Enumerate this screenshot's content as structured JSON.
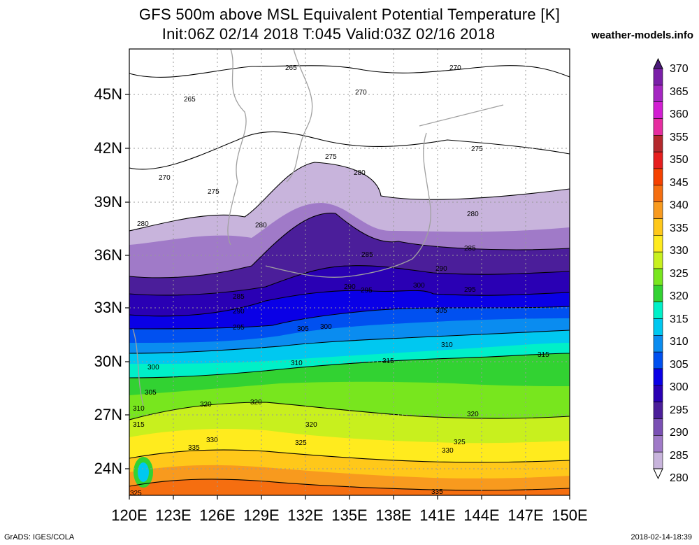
{
  "title_line1": "GFS 500m above MSL Equivalent Potential Temperature [K]",
  "title_line2": "Init:06Z 02/14 2018 T:045 Valid:03Z 02/16 2018",
  "site": "weather-models.info",
  "footer_left": "GrADS: IGES/COLA",
  "footer_right": "2018-02-14-18:39",
  "lat_labels": [
    "45N",
    "42N",
    "39N",
    "36N",
    "33N",
    "30N",
    "27N",
    "24N"
  ],
  "lon_labels": [
    "120E",
    "123E",
    "126E",
    "129E",
    "132E",
    "135E",
    "138E",
    "141E",
    "144E",
    "147E",
    "150E"
  ],
  "colorbar": {
    "labels": [
      "370",
      "365",
      "360",
      "355",
      "350",
      "345",
      "340",
      "335",
      "330",
      "325",
      "320",
      "315",
      "310",
      "305",
      "300",
      "295",
      "290",
      "285",
      "280"
    ],
    "colors": [
      "#7a1fa8",
      "#a526c2",
      "#d21ed2",
      "#e62da0",
      "#b4282d",
      "#e61e1e",
      "#f54100",
      "#f56e10",
      "#f89a1e",
      "#ffc81a",
      "#ffeb1e",
      "#c8f01e",
      "#78e61e",
      "#32d232",
      "#00f0c8",
      "#00c8f0",
      "#0a8cf0",
      "#0050f0",
      "#0a00e6",
      "#2a00b4",
      "#4b1e9a",
      "#7a50b4",
      "#a07ac8",
      "#c8b4dc"
    ],
    "top_color": "#4b1a7a"
  },
  "contour_labels": [
    "265",
    "270",
    "275",
    "280",
    "285",
    "290",
    "295",
    "300",
    "305",
    "310",
    "315",
    "320",
    "325",
    "330",
    "335"
  ]
}
